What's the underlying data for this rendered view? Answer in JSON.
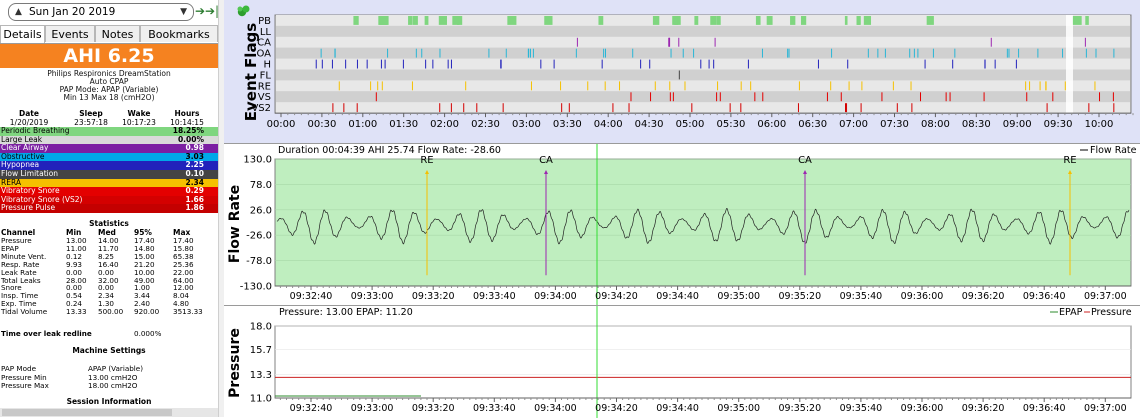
{
  "nav": {
    "date": "Sun Jan 20 2019",
    "back_icon": "arrow-left-icon",
    "fwd_icon": "arrow-right-icon"
  },
  "tabs": [
    "Details",
    "Events",
    "Notes",
    "Bookmarks"
  ],
  "summary": {
    "ahi": "AHI 6.25",
    "machine": "Philips Respironics DreamStation",
    "model": "Auto CPAP",
    "mode": "PAP Mode: APAP (Variable)",
    "pressure": "Min 13 Max 18 (cmH2O)"
  },
  "session_header": {
    "date_h": "Date",
    "sleep_h": "Sleep",
    "wake_h": "Wake",
    "hours_h": "Hours",
    "date": "1/20/2019",
    "sleep": "23:57:18",
    "wake": "10:17:23",
    "hours": "10:14:15"
  },
  "events": [
    {
      "name": "Periodic Breathing",
      "value": "18.25%",
      "bg": "#7fd67f",
      "fg": "#000000"
    },
    {
      "name": "Large Leak",
      "value": "0.00%",
      "bg": "#d9d9d9",
      "fg": "#000000"
    },
    {
      "name": "Clear Airway",
      "value": "0.98",
      "bg": "#7b1fa2",
      "fg": "#ffffff"
    },
    {
      "name": "Obstructive",
      "value": "3.03",
      "bg": "#00a8e8",
      "fg": "#000000"
    },
    {
      "name": "Hypopnea",
      "value": "2.25",
      "bg": "#2222bb",
      "fg": "#ffffff"
    },
    {
      "name": "Flow Limitation",
      "value": "0.10",
      "bg": "#444444",
      "fg": "#ffffff"
    },
    {
      "name": "RERA",
      "value": "2.34",
      "bg": "#f5c000",
      "fg": "#000000"
    },
    {
      "name": "Vibratory Snore",
      "value": "0.29",
      "bg": "#e40000",
      "fg": "#ffffff"
    },
    {
      "name": "Vibratory Snore (VS2)",
      "value": "1.66",
      "bg": "#d40000",
      "fg": "#ffffff"
    },
    {
      "name": "Pressure Pulse",
      "value": "1.86",
      "bg": "#c40000",
      "fg": "#ffffff"
    }
  ],
  "statistics": {
    "title": "Statistics",
    "headers": [
      "Channel",
      "Min",
      "Med",
      "95%",
      "Max"
    ],
    "rows": [
      [
        "Pressure",
        "13.00",
        "14.00",
        "17.40",
        "17.40"
      ],
      [
        "EPAP",
        "11.00",
        "11.70",
        "14.80",
        "15.80"
      ],
      [
        "Minute Vent.",
        "0.12",
        "8.25",
        "15.00",
        "65.38"
      ],
      [
        "Resp. Rate",
        "9.93",
        "16.40",
        "21.20",
        "25.36"
      ],
      [
        "Leak Rate",
        "0.00",
        "0.00",
        "10.00",
        "22.00"
      ],
      [
        "Total Leaks",
        "28.00",
        "32.00",
        "49.00",
        "64.00"
      ],
      [
        "Snore",
        "0.00",
        "0.00",
        "1.00",
        "12.00"
      ],
      [
        "Insp. Time",
        "0.54",
        "2.34",
        "3.44",
        "8.04"
      ],
      [
        "Exp. Time",
        "0.24",
        "1.30",
        "2.40",
        "4.80"
      ],
      [
        "Tidal Volume",
        "13.33",
        "500.00",
        "920.00",
        "3513.33"
      ]
    ]
  },
  "leak": {
    "label": "Time over leak redline",
    "value": "0.000%"
  },
  "machine_settings": {
    "title": "Machine Settings",
    "rows": [
      [
        "PAP Mode",
        "APAP (Variable)"
      ],
      [
        "Pressure Min",
        "13.00 cmH2O"
      ],
      [
        "Pressure Max",
        "18.00 cmH2O"
      ]
    ]
  },
  "session_info": {
    "title": "Session Information"
  },
  "event_flags": {
    "ylabel": "Event Flags",
    "pin_icon": "pin-icon",
    "channels": [
      "PB",
      "LL",
      "CA",
      "OA",
      "H",
      "FL",
      "RE",
      "VS",
      "VS2"
    ],
    "time_ticks": [
      "00:00",
      "00:30",
      "01:00",
      "01:30",
      "02:00",
      "02:30",
      "03:00",
      "03:30",
      "04:00",
      "04:30",
      "05:00",
      "05:30",
      "06:00",
      "06:30",
      "07:00",
      "07:30",
      "08:00",
      "08:30",
      "09:00",
      "09:30",
      "10:00"
    ],
    "colors": {
      "PB": "#7fd67f",
      "CA": "#9c27b0",
      "OA": "#29b6d6",
      "H": "#2222bb",
      "FL": "#444444",
      "RE": "#f5c000",
      "VS": "#e40000",
      "VS2": "#d40000"
    }
  },
  "flow": {
    "ylabel": "Flow Rate",
    "title": "Duration 00:04:39 AHI 25.74 Flow Rate: -28.60",
    "legend": "Flow Rate",
    "y_ticks": [
      "130.0",
      "78.0",
      "26.0",
      "-26.0",
      "-78.0",
      "-130.0"
    ],
    "events": [
      {
        "label": "RE",
        "color": "#f5c000"
      },
      {
        "label": "CA",
        "color": "#9c27b0"
      },
      {
        "label": "CA",
        "color": "#9c27b0"
      },
      {
        "label": "RE",
        "color": "#f5c000"
      }
    ]
  },
  "pressure": {
    "ylabel": "Pressure",
    "title": "Pressure: 13.00 EPAP: 11.20",
    "legend_epap": "EPAP",
    "legend_pressure": "Pressure",
    "y_ticks": [
      "18.0",
      "15.7",
      "13.3",
      "11.0"
    ]
  },
  "time_ticks_zoom": [
    "09:32:40",
    "09:33:00",
    "09:33:20",
    "09:33:40",
    "09:34:00",
    "09:34:20",
    "09:34:40",
    "09:35:00",
    "09:35:20",
    "09:35:40",
    "09:36:00",
    "09:36:20",
    "09:36:40",
    "09:37:00"
  ]
}
